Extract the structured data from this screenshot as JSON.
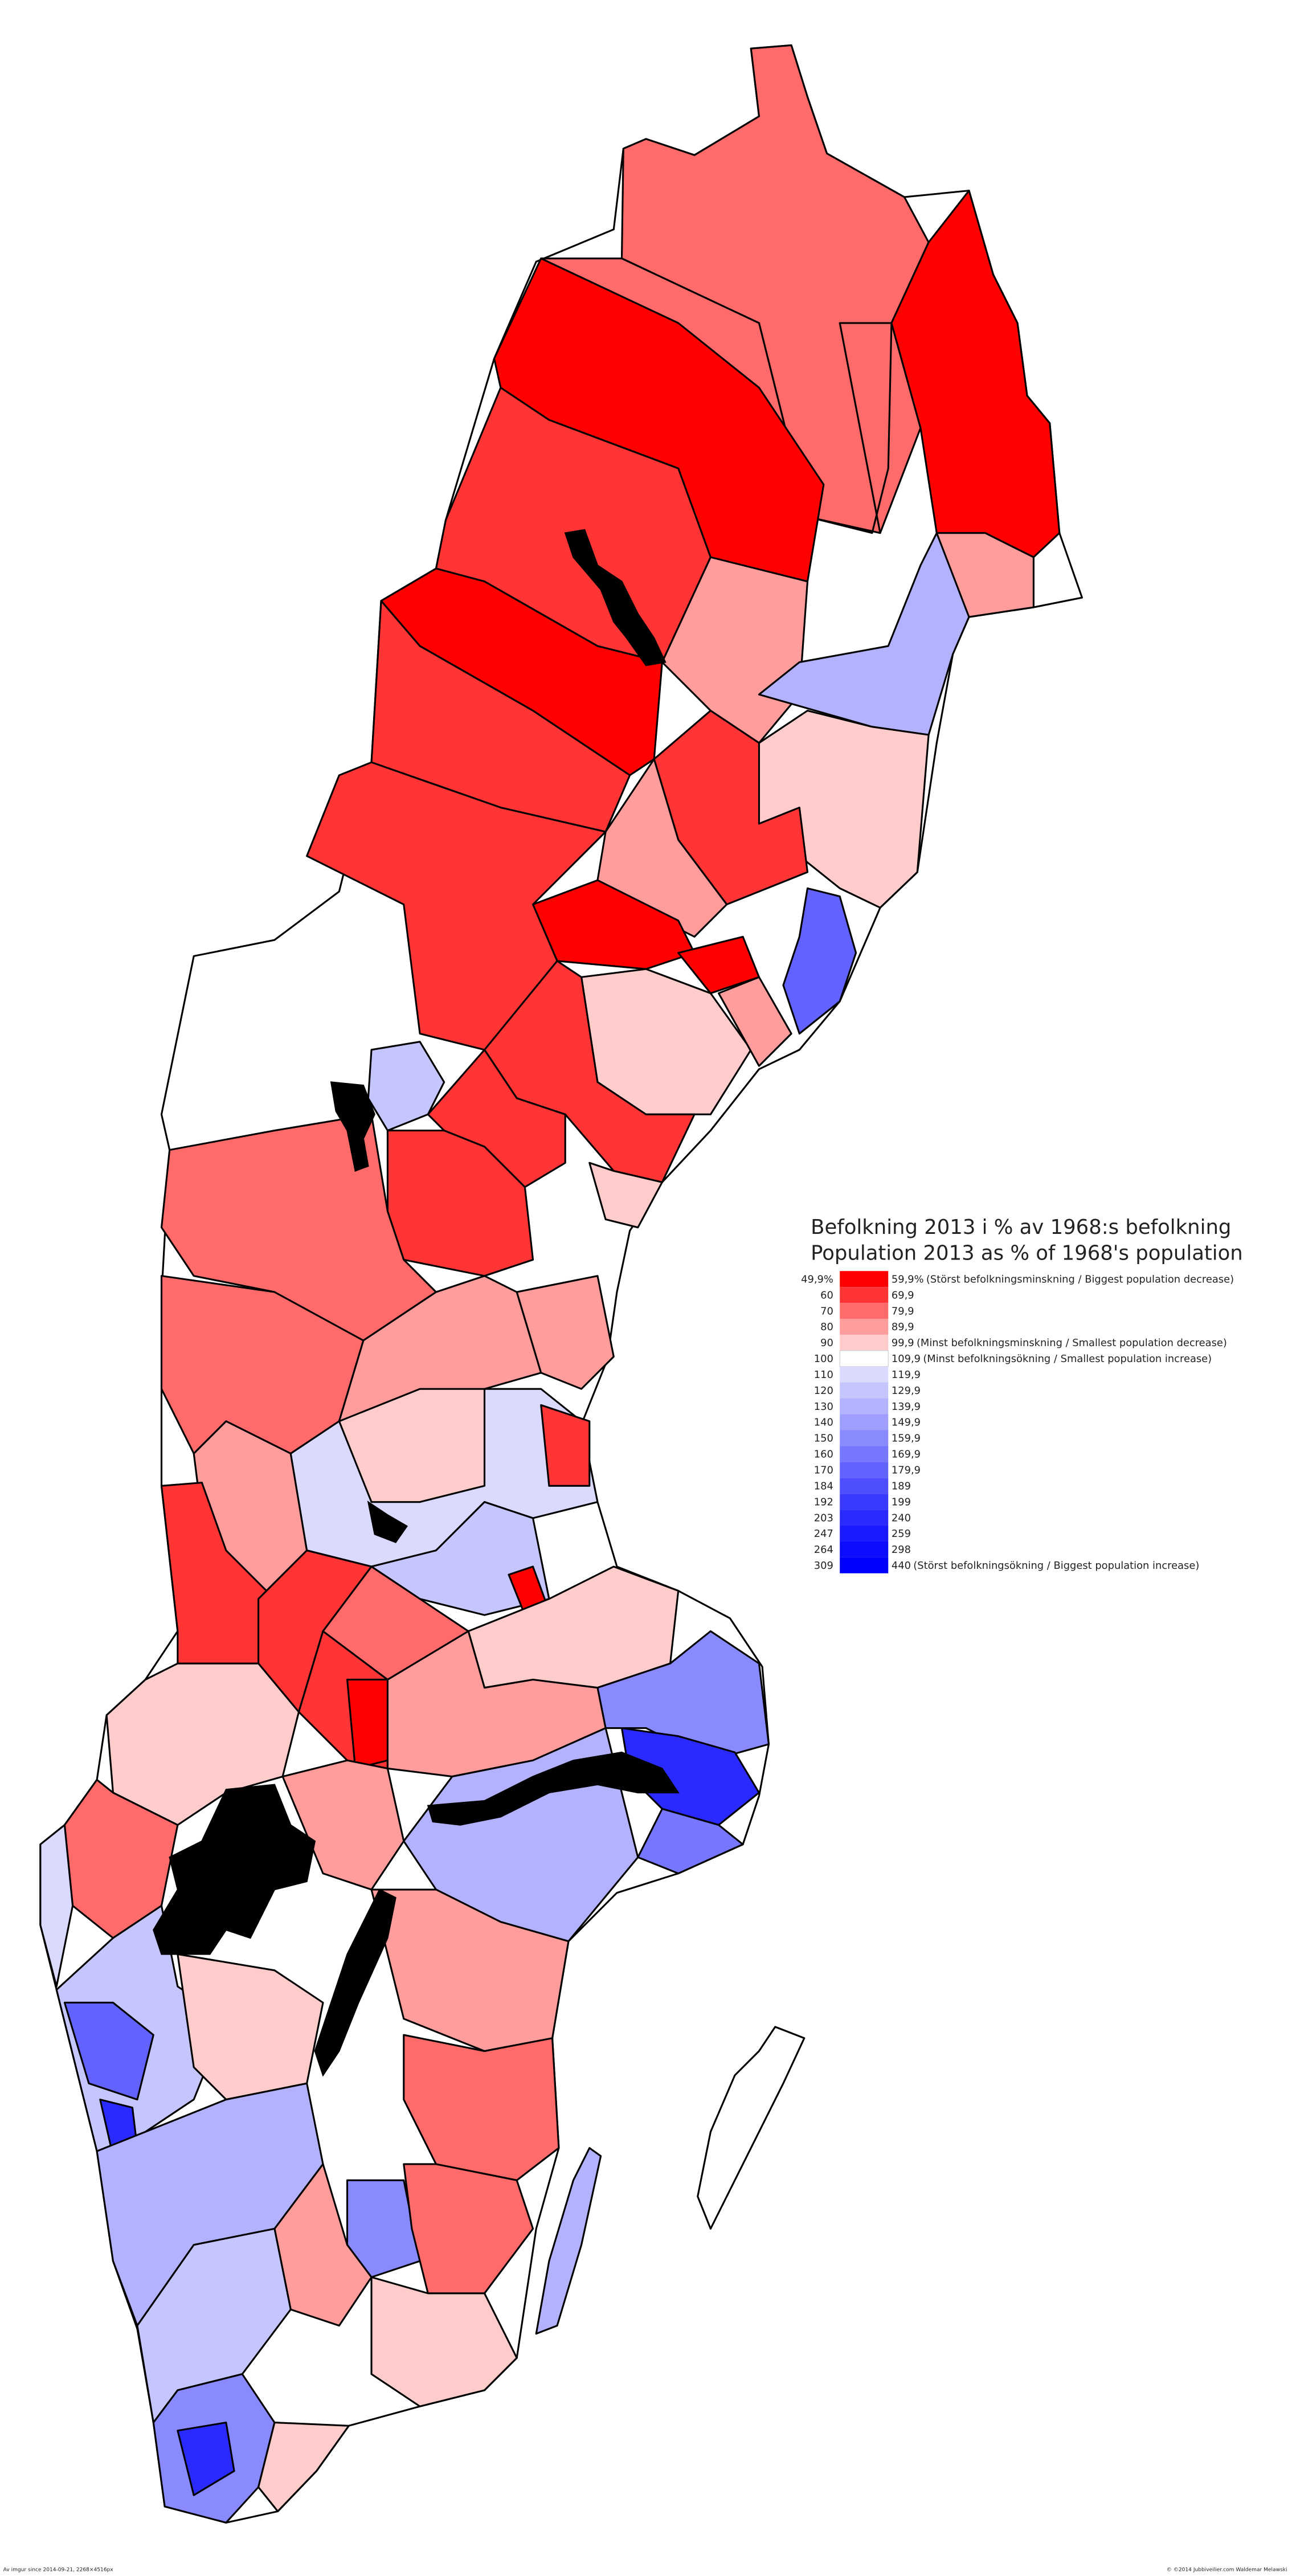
{
  "legend": {
    "title": "Befolkning 2013 i % av 1968:s befolkning",
    "subtitle": "Population 2013 as % of 1968's population",
    "rows": [
      {
        "from": "49,9%",
        "to": "59,9%",
        "note": "(Störst befolkningsminskning / Biggest population decrease)",
        "color": "#ff0000"
      },
      {
        "from": "60",
        "to": "69,9",
        "color": "#ff3535"
      },
      {
        "from": "70",
        "to": "79,9",
        "color": "#ff6a6a"
      },
      {
        "from": "80",
        "to": "89,9",
        "color": "#ff9c9c"
      },
      {
        "from": "90",
        "to": "99,9",
        "note": "(Minst befolkningsminskning / Smallest population decrease)",
        "color": "#ffcccc"
      },
      {
        "from": "100",
        "to": "109,9",
        "note": "(Minst befolkningsökning / Smallest population increase)",
        "color": "#ffffff"
      },
      {
        "from": "110",
        "to": "119,9",
        "color": "#dadaff"
      },
      {
        "from": "120",
        "to": "129,9",
        "color": "#c6c6ff"
      },
      {
        "from": "130",
        "to": "139,9",
        "color": "#b2b2ff"
      },
      {
        "from": "140",
        "to": "149,9",
        "color": "#9e9eff"
      },
      {
        "from": "150",
        "to": "159,9",
        "color": "#8a8aff"
      },
      {
        "from": "160",
        "to": "169,9",
        "color": "#7676ff"
      },
      {
        "from": "170",
        "to": "179,9",
        "color": "#6262ff"
      },
      {
        "from": "184",
        "to": "189",
        "color": "#4e4eff"
      },
      {
        "from": "192",
        "to": "199",
        "color": "#3a3aff"
      },
      {
        "from": "203",
        "to": "240",
        "color": "#2a2aff"
      },
      {
        "from": "247",
        "to": "259",
        "color": "#1a1aff"
      },
      {
        "from": "264",
        "to": "298",
        "color": "#0c0cff"
      },
      {
        "from": "309",
        "to": "440",
        "note": "(Störst befolkningsökning / Biggest population increase)",
        "color": "#0000ff"
      }
    ]
  },
  "footer": {
    "left": "Av imgur since 2014-09-21, 2268×4516px",
    "right": "© ©2014 Jubbiveilier.com Waldemar Melawski"
  }
}
